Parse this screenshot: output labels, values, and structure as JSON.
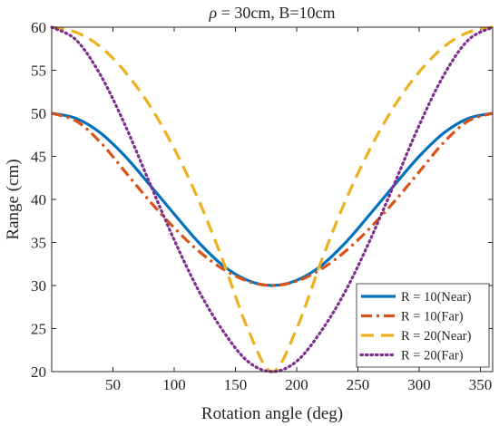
{
  "chart_data": {
    "type": "line",
    "title": "ρ = 30cm, B=10cm",
    "title_parts": {
      "rho": "ρ",
      "rest": " = 30cm, B=10cm"
    },
    "xlabel": "Rotation angle (deg)",
    "ylabel": "Range (cm)",
    "xlim": [
      0,
      360
    ],
    "ylim": [
      20,
      60
    ],
    "xticks": [
      50,
      100,
      150,
      200,
      250,
      300,
      350
    ],
    "yticks": [
      20,
      25,
      30,
      35,
      40,
      45,
      50,
      55,
      60
    ],
    "grid": false,
    "legend_position": "bottom-right",
    "x": [
      0,
      20,
      40,
      60,
      80,
      100,
      120,
      140,
      160,
      180,
      200,
      220,
      240,
      260,
      280,
      300,
      320,
      340,
      360
    ],
    "series": [
      {
        "name": "R = 10(Near)",
        "color": "#0072BD",
        "dash": "solid",
        "values": [
          50.0,
          49.4,
          47.7,
          45.0,
          41.7,
          38.3,
          35.0,
          32.3,
          30.6,
          30.0,
          30.6,
          32.3,
          35.0,
          38.3,
          41.7,
          45.0,
          47.7,
          49.4,
          50.0
        ]
      },
      {
        "name": "R = 10(Far)",
        "color": "#D95319",
        "dash": "dashdot",
        "values": [
          50.0,
          49.1,
          46.6,
          43.2,
          39.8,
          36.7,
          34.0,
          31.9,
          30.5,
          30.0,
          30.5,
          31.9,
          34.0,
          36.7,
          39.8,
          43.2,
          46.6,
          49.1,
          50.0
        ]
      },
      {
        "name": "R = 20(Near)",
        "color": "#EDB120",
        "dash": "dashed",
        "values": [
          60.0,
          59.4,
          57.7,
          54.8,
          50.9,
          45.9,
          39.9,
          32.8,
          25.0,
          20.0,
          25.0,
          32.8,
          39.9,
          45.9,
          50.9,
          54.8,
          57.7,
          59.4,
          60.0
        ]
      },
      {
        "name": "R = 20(Far)",
        "color": "#7E2F8E",
        "dash": "dotted",
        "values": [
          60.0,
          58.5,
          54.4,
          48.6,
          41.9,
          35.3,
          29.4,
          24.7,
          21.2,
          20.0,
          21.2,
          24.7,
          29.4,
          35.3,
          41.9,
          48.6,
          54.4,
          58.5,
          60.0
        ]
      }
    ]
  }
}
